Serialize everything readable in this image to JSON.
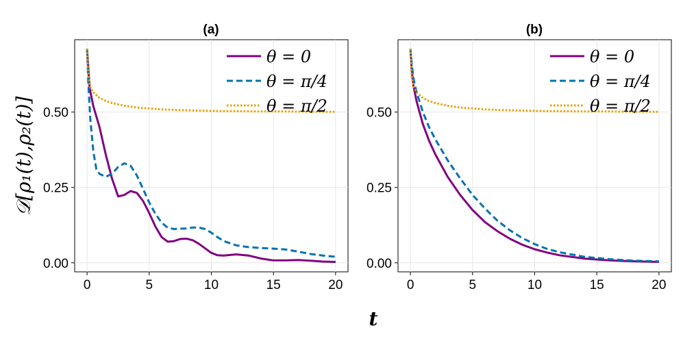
{
  "figure": {
    "ylabel": "𝒟[ρ₁(t),ρ₂(t)]",
    "xlabel": "t"
  },
  "chart_data": [
    {
      "type": "line",
      "title": "(a)",
      "xlabel": "t",
      "ylabel": "𝒟[ρ₁(t),ρ₂(t)]",
      "xlim": [
        -1,
        21
      ],
      "ylim": [
        -0.03,
        0.74
      ],
      "xticks": [
        0,
        5,
        10,
        15,
        20
      ],
      "xtick_labels": [
        "0",
        "5",
        "10",
        "15",
        "20"
      ],
      "yticks": [
        0.0,
        0.25,
        0.5
      ],
      "ytick_labels": [
        "0.00",
        "0.25",
        "0.50"
      ],
      "grid": true,
      "legend_position": "top-right",
      "series": [
        {
          "name": "θ = 0",
          "color": "#800080",
          "style": "solid",
          "x": [
            0,
            0.2,
            0.5,
            1,
            1.5,
            2,
            2.5,
            3,
            3.5,
            4,
            4.5,
            5,
            5.5,
            6,
            6.5,
            7,
            7.5,
            8,
            8.5,
            9,
            9.5,
            10,
            10.5,
            11,
            12,
            13,
            14,
            15,
            16,
            17,
            18,
            19,
            20
          ],
          "y": [
            0.71,
            0.58,
            0.52,
            0.45,
            0.36,
            0.28,
            0.22,
            0.225,
            0.238,
            0.232,
            0.205,
            0.165,
            0.12,
            0.085,
            0.07,
            0.072,
            0.079,
            0.08,
            0.075,
            0.063,
            0.048,
            0.033,
            0.025,
            0.024,
            0.028,
            0.024,
            0.014,
            0.008,
            0.008,
            0.009,
            0.007,
            0.004,
            0.003
          ]
        },
        {
          "name": "θ = π/4",
          "color": "#0072B2",
          "style": "dashed",
          "x": [
            0,
            0.1,
            0.25,
            0.5,
            0.75,
            1,
            1.5,
            2,
            2.5,
            3,
            3.5,
            4,
            4.5,
            5,
            5.5,
            6,
            6.5,
            7,
            7.5,
            8,
            8.5,
            9,
            9.5,
            10,
            10.5,
            11,
            12,
            13,
            14,
            15,
            16,
            17,
            18,
            19,
            20
          ],
          "y": [
            0.71,
            0.6,
            0.48,
            0.37,
            0.31,
            0.295,
            0.285,
            0.295,
            0.318,
            0.33,
            0.322,
            0.29,
            0.245,
            0.2,
            0.162,
            0.133,
            0.116,
            0.112,
            0.113,
            0.114,
            0.117,
            0.117,
            0.112,
            0.1,
            0.085,
            0.072,
            0.058,
            0.052,
            0.049,
            0.047,
            0.044,
            0.037,
            0.029,
            0.024,
            0.02
          ]
        },
        {
          "name": "θ = π/2",
          "color": "#E69F00",
          "style": "dotted",
          "x": [
            0,
            0.1,
            0.25,
            0.5,
            1,
            1.5,
            2,
            3,
            4,
            5,
            6,
            7,
            8,
            9,
            10,
            11,
            12,
            14,
            16,
            18,
            20
          ],
          "y": [
            0.71,
            0.62,
            0.585,
            0.565,
            0.547,
            0.537,
            0.53,
            0.521,
            0.515,
            0.512,
            0.509,
            0.507,
            0.506,
            0.505,
            0.504,
            0.503,
            0.503,
            0.502,
            0.502,
            0.501,
            0.501
          ]
        }
      ]
    },
    {
      "type": "line",
      "title": "(b)",
      "xlabel": "t",
      "ylabel": "",
      "xlim": [
        -1,
        21
      ],
      "ylim": [
        -0.03,
        0.74
      ],
      "xticks": [
        0,
        5,
        10,
        15,
        20
      ],
      "xtick_labels": [
        "0",
        "5",
        "10",
        "15",
        "20"
      ],
      "yticks": [
        0.0,
        0.25,
        0.5
      ],
      "ytick_labels": [
        "0.00",
        "0.25",
        "0.50"
      ],
      "grid": true,
      "legend_position": "top-right",
      "series": [
        {
          "name": "θ = 0",
          "color": "#800080",
          "style": "solid",
          "x": [
            0,
            0.1,
            0.25,
            0.5,
            1,
            1.5,
            2,
            3,
            4,
            5,
            6,
            7,
            8,
            9,
            10,
            11,
            12,
            14,
            16,
            18,
            20
          ],
          "y": [
            0.71,
            0.64,
            0.585,
            0.535,
            0.46,
            0.405,
            0.36,
            0.285,
            0.225,
            0.175,
            0.135,
            0.105,
            0.08,
            0.06,
            0.045,
            0.034,
            0.025,
            0.014,
            0.008,
            0.005,
            0.003
          ]
        },
        {
          "name": "θ = π/4",
          "color": "#0072B2",
          "style": "dashed",
          "x": [
            0,
            0.1,
            0.25,
            0.5,
            1,
            1.5,
            2,
            3,
            4,
            5,
            6,
            7,
            8,
            9,
            10,
            11,
            12,
            14,
            16,
            18,
            20
          ],
          "y": [
            0.71,
            0.66,
            0.61,
            0.565,
            0.5,
            0.45,
            0.41,
            0.34,
            0.28,
            0.225,
            0.18,
            0.14,
            0.108,
            0.082,
            0.062,
            0.046,
            0.035,
            0.02,
            0.012,
            0.007,
            0.005
          ]
        },
        {
          "name": "θ = π/2",
          "color": "#E69F00",
          "style": "dotted",
          "x": [
            0,
            0.1,
            0.25,
            0.5,
            1,
            1.5,
            2,
            3,
            4,
            5,
            6,
            7,
            8,
            9,
            10,
            11,
            12,
            14,
            16,
            18,
            20
          ],
          "y": [
            0.71,
            0.62,
            0.585,
            0.565,
            0.547,
            0.537,
            0.53,
            0.521,
            0.515,
            0.512,
            0.509,
            0.507,
            0.506,
            0.505,
            0.504,
            0.503,
            0.503,
            0.502,
            0.502,
            0.501,
            0.501
          ]
        }
      ]
    }
  ]
}
